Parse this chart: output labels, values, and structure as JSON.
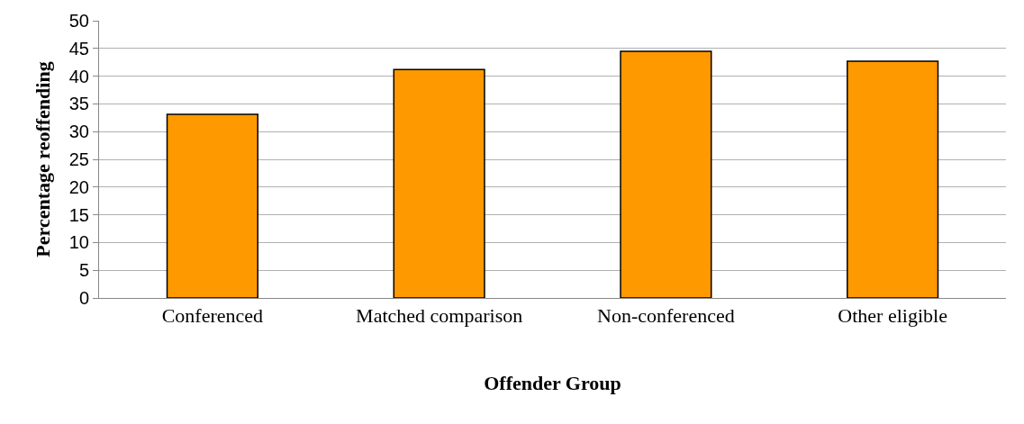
{
  "chart_data": {
    "type": "bar",
    "xlabel": "Offender Group",
    "ylabel": "Percentage reoffending",
    "categories": [
      "Conferenced",
      "Matched comparison",
      "Non-conferenced",
      "Other eligible"
    ],
    "values": [
      33.1,
      41.2,
      44.5,
      42.7
    ],
    "color": "#ff9900",
    "ylim": [
      0,
      50
    ],
    "yticks": [
      0,
      5,
      10,
      15,
      20,
      25,
      30,
      35,
      40,
      45,
      50
    ],
    "grid": "y",
    "legend": false
  }
}
